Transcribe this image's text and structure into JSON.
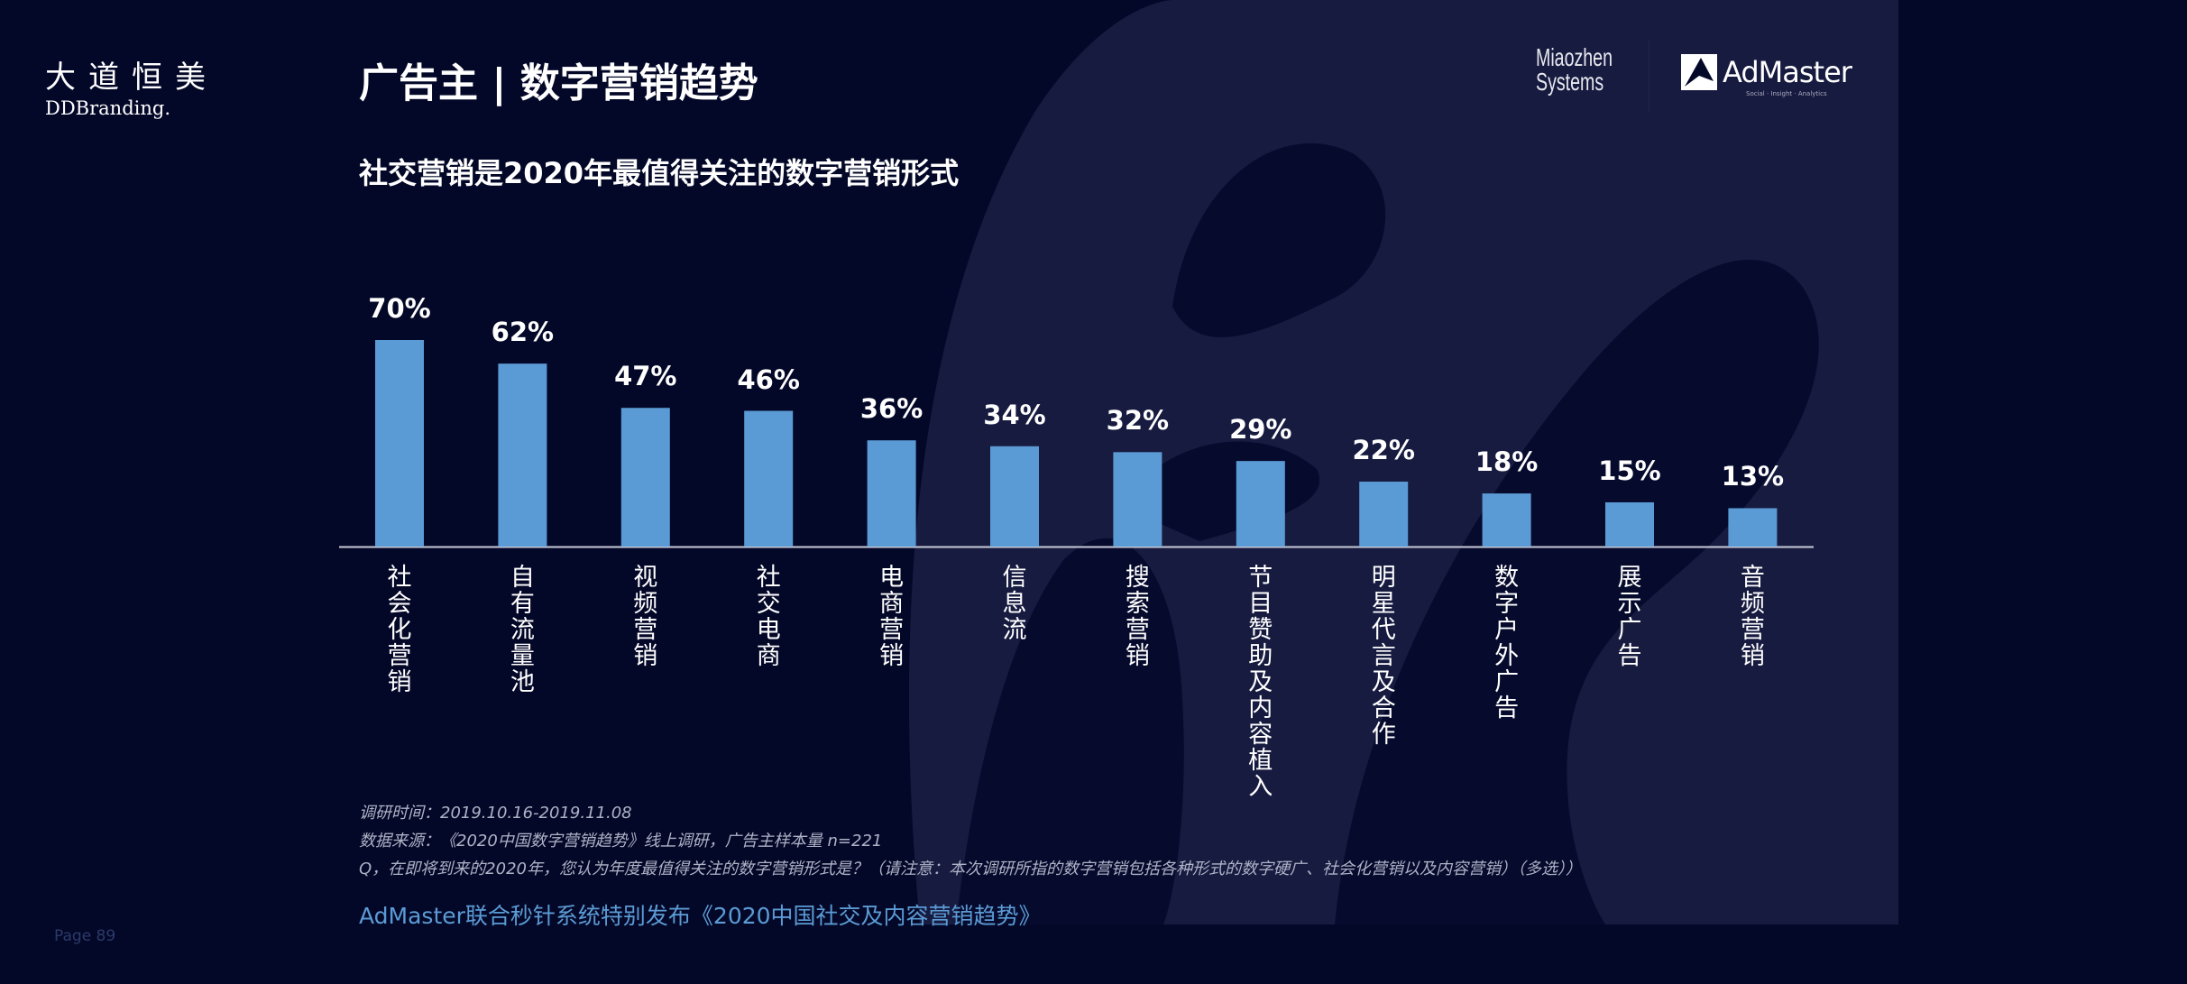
{
  "brand": {
    "cn": "大道恒美",
    "en": "DDBranding."
  },
  "header": {
    "title": "广告主 | 数字营销趋势"
  },
  "logos": {
    "miaozhen_line1": "Miaozhen",
    "miaozhen_line2": "Systems",
    "admaster": "AdMaster",
    "admaster_tagline": "Social · Insight · Analytics"
  },
  "colors": {
    "background": "#040828",
    "bar": "#5b9bd5",
    "footer": "#5b9bd5"
  },
  "chart_data": {
    "type": "bar",
    "title": "社交营销是2020年最值得关注的数字营销形式",
    "categories": [
      "社会化营销",
      "自有流量池",
      "视频营销",
      "社交电商",
      "电商营销",
      "信息流",
      "搜索营销",
      "节目赞助及内容植入",
      "明星代言及合作",
      "数字户外广告",
      "展示广告",
      "音频营销"
    ],
    "values": [
      70,
      62,
      47,
      46,
      36,
      34,
      32,
      29,
      22,
      18,
      15,
      13
    ],
    "value_labels": [
      "70%",
      "62%",
      "47%",
      "46%",
      "36%",
      "34%",
      "32%",
      "29%",
      "22%",
      "18%",
      "15%",
      "13%"
    ],
    "unit": "%",
    "ylim": [
      0,
      70
    ],
    "grid": false,
    "legend": "none",
    "xlabel": "",
    "ylabel": ""
  },
  "notes": [
    "调研时间：2019.10.16-2019.11.08",
    "数据来源：《2020中国数字营销趋势》线上调研，广告主样本量 n=221",
    "Q，在即将到来的2020年，您认为年度最值得关注的数字营销形式是？（请注意：本次调研所指的数字营销包括各种形式的数字硬广、社会化营销以及内容营销）（多选））"
  ],
  "footer": "AdMaster联合秒针系统特别发布《2020中国社交及内容营销趋势》",
  "page": "Page  89"
}
